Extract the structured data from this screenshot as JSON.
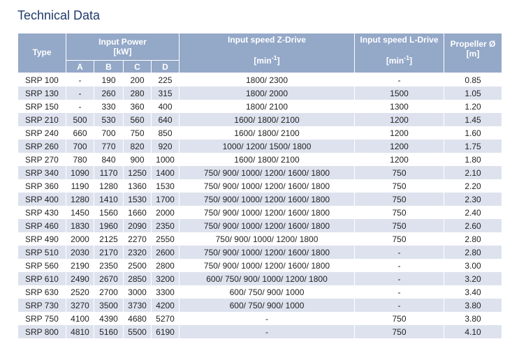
{
  "title": "Technical Data",
  "headers": {
    "type": "Type",
    "power": "Input Power",
    "power_unit": "[kW]",
    "z": "Input speed Z-Drive",
    "l": "Input speed L-Drive",
    "speed_unit": "[min",
    "speed_exp": "-1",
    "speed_close": "]",
    "prop": "Propeller Ø",
    "prop_unit": "[m]",
    "a": "A",
    "b": "B",
    "c": "C",
    "d": "D"
  },
  "rows": [
    [
      "SRP 100",
      "-",
      "190",
      "200",
      "225",
      "1800/ 2300",
      "-",
      "0.85"
    ],
    [
      "SRP 130",
      "-",
      "260",
      "280",
      "315",
      "1800/ 2000",
      "1500",
      "1.05"
    ],
    [
      "SRP 150",
      "-",
      "330",
      "360",
      "400",
      "1800/ 2100",
      "1300",
      "1.20"
    ],
    [
      "SRP 210",
      "500",
      "530",
      "560",
      "640",
      "1600/ 1800/ 2100",
      "1200",
      "1.45"
    ],
    [
      "SRP 240",
      "660",
      "700",
      "750",
      "850",
      "1600/ 1800/ 2100",
      "1200",
      "1.60"
    ],
    [
      "SRP 260",
      "700",
      "770",
      "820",
      "920",
      "1000/ 1200/ 1500/ 1800",
      "1200",
      "1.75"
    ],
    [
      "SRP 270",
      "780",
      "840",
      "900",
      "1000",
      "1600/ 1800/ 2100",
      "1200",
      "1.80"
    ],
    [
      "SRP 340",
      "1090",
      "1170",
      "1250",
      "1400",
      "750/ 900/ 1000/ 1200/ 1600/ 1800",
      "750",
      "2.10"
    ],
    [
      "SRP 360",
      "1190",
      "1280",
      "1360",
      "1530",
      "750/ 900/ 1000/ 1200/ 1600/ 1800",
      "750",
      "2.20"
    ],
    [
      "SRP 400",
      "1280",
      "1410",
      "1530",
      "1700",
      "750/ 900/ 1000/ 1200/ 1600/ 1800",
      "750",
      "2.30"
    ],
    [
      "SRP 430",
      "1450",
      "1560",
      "1660",
      "2000",
      "750/ 900/ 1000/ 1200/ 1600/ 1800",
      "750",
      "2.40"
    ],
    [
      "SRP 460",
      "1830",
      "1960",
      "2090",
      "2350",
      "750/ 900/ 1000/ 1200/ 1600/ 1800",
      "750",
      "2.60"
    ],
    [
      "SRP 490",
      "2000",
      "2125",
      "2270",
      "2550",
      "750/ 900/ 1000/ 1200/ 1800",
      "750",
      "2.80"
    ],
    [
      "SRP 510",
      "2030",
      "2170",
      "2320",
      "2600",
      "750/ 900/ 1000/ 1200/ 1600/ 1800",
      "-",
      "2.80"
    ],
    [
      "SRP 560",
      "2190",
      "2350",
      "2500",
      "2800",
      "750/ 900/ 1000/ 1200/ 1600/ 1800",
      "-",
      "3.00"
    ],
    [
      "SRP 610",
      "2490",
      "2670",
      "2850",
      "3200",
      "600/ 750/ 900/ 1000/ 1200/ 1800",
      "-",
      "3.20"
    ],
    [
      "SRP 630",
      "2520",
      "2700",
      "3000",
      "3300",
      "600/ 750/ 900/ 1000",
      "-",
      "3.40"
    ],
    [
      "SRP 730",
      "3270",
      "3500",
      "3730",
      "4200",
      "600/ 750/ 900/ 1000",
      "-",
      "3.80"
    ],
    [
      "SRP 750",
      "4100",
      "4390",
      "4680",
      "5270",
      "-",
      "750",
      "3.80"
    ],
    [
      "SRP 800",
      "4810",
      "5160",
      "5500",
      "6190",
      "-",
      "750",
      "4.10"
    ]
  ]
}
